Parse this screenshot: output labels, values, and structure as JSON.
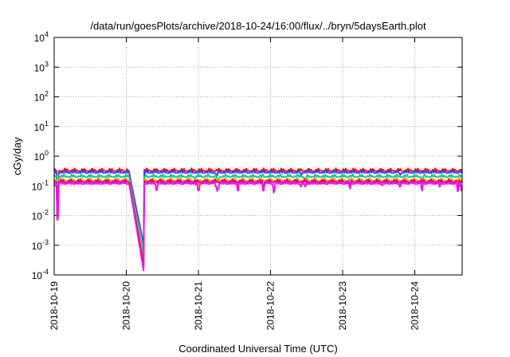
{
  "chart_data": {
    "type": "line",
    "title": "/data/run/goesPlots/archive/2018-10-24/16:00/flux/../bryn/5daysEarth.plot",
    "xlabel": "Coordinated Universal Time (UTC)",
    "ylabel": "cGy/day",
    "yscale": "log",
    "ylim": [
      0.0001,
      10000
    ],
    "y_ticks": [
      {
        "base": "10",
        "exp": "-4"
      },
      {
        "base": "10",
        "exp": "-3"
      },
      {
        "base": "10",
        "exp": "-2"
      },
      {
        "base": "10",
        "exp": "-1"
      },
      {
        "base": "10",
        "exp": "0"
      },
      {
        "base": "10",
        "exp": "1"
      },
      {
        "base": "10",
        "exp": "2"
      },
      {
        "base": "10",
        "exp": "3"
      },
      {
        "base": "10",
        "exp": "4"
      }
    ],
    "x_range_days": [
      "2018-10-19",
      "2018-10-24"
    ],
    "x_ticks": [
      "2018-10-19",
      "2018-10-20",
      "2018-10-21",
      "2018-10-22",
      "2018-10-23",
      "2018-10-24"
    ],
    "grid": true,
    "series": [
      {
        "color": "#ff0000",
        "base": 0.38,
        "drop_min": 0.00012
      },
      {
        "color": "#4040ff",
        "base": 0.33,
        "drop_min": 0.0008
      },
      {
        "color": "#00cc88",
        "base": 0.24,
        "drop_min": 0.00035
      },
      {
        "color": "#ff9900",
        "base": 0.18,
        "drop_min": 0.0002
      },
      {
        "color": "#cc0066",
        "base": 0.16,
        "drop_min": 0.00015
      },
      {
        "color": "#ff00ff",
        "base": 0.14,
        "drop_min": 0.0001
      }
    ],
    "data_gap": {
      "start": "2018-10-20T00:50",
      "end": "2018-10-20T06:00"
    }
  }
}
